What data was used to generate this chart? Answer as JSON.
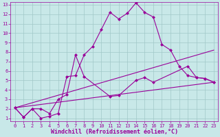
{
  "xlabel": "Windchill (Refroidissement éolien,°C)",
  "xlim": [
    -0.5,
    23.5
  ],
  "ylim": [
    0.7,
    13.3
  ],
  "xticks": [
    0,
    1,
    2,
    3,
    4,
    5,
    6,
    7,
    8,
    9,
    10,
    11,
    12,
    13,
    14,
    15,
    16,
    17,
    18,
    19,
    20,
    21,
    22,
    23
  ],
  "yticks": [
    1,
    2,
    3,
    4,
    5,
    6,
    7,
    8,
    9,
    10,
    11,
    12,
    13
  ],
  "background_color": "#c8e8e8",
  "grid_color": "#a0c8c8",
  "line_color": "#990099",
  "line1_x": [
    0,
    1,
    2,
    3,
    4,
    5,
    6,
    7,
    8,
    9,
    10,
    11,
    12,
    13,
    14,
    15,
    16,
    17,
    18,
    19,
    20,
    21,
    22,
    23
  ],
  "line1_y": [
    2.1,
    1.1,
    2.0,
    1.0,
    1.2,
    1.5,
    5.4,
    5.5,
    7.7,
    8.6,
    10.4,
    12.2,
    11.5,
    12.1,
    13.2,
    12.2,
    11.7,
    8.8,
    8.2,
    6.5,
    5.5,
    5.3,
    5.2,
    4.8
  ],
  "line2_x": [
    0,
    1,
    2,
    3,
    4,
    5,
    6,
    7,
    8,
    11,
    12,
    14,
    15,
    16,
    20,
    21,
    22,
    23
  ],
  "line2_y": [
    2.1,
    1.1,
    2.0,
    2.0,
    1.5,
    3.0,
    3.5,
    7.7,
    5.4,
    3.3,
    3.4,
    5.0,
    5.3,
    4.8,
    6.5,
    5.3,
    5.2,
    4.8
  ],
  "line3_x": [
    0,
    23
  ],
  "line3_y": [
    2.1,
    4.8
  ],
  "line4_x": [
    0,
    23
  ],
  "line4_y": [
    2.1,
    8.2
  ],
  "markersize": 2.5,
  "linewidth": 0.8,
  "tick_fontsize": 5.0,
  "xlabel_fontsize": 6.0
}
